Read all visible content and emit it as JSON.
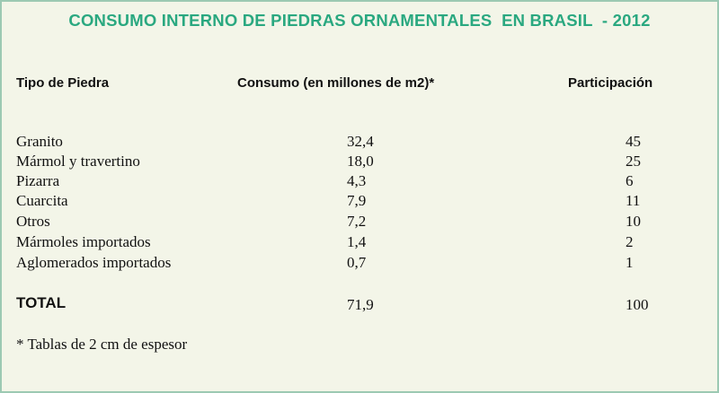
{
  "title": "CONSUMO INTERNO DE PIEDRAS ORNAMENTALES  EN BRASIL  - 2012",
  "headers": {
    "tipo": "Tipo de Piedra",
    "consumo": "Consumo (en millones de m2)*",
    "participacion": "Participación"
  },
  "rows": [
    {
      "tipo": "Granito",
      "consumo": "32,4",
      "participacion": "45"
    },
    {
      "tipo": "Mármol y travertino",
      "consumo": "18,0",
      "participacion": "25"
    },
    {
      "tipo": "Pizarra",
      "consumo": "4,3",
      "participacion": "6"
    },
    {
      "tipo": "Cuarcita",
      "consumo": "7,9",
      "participacion": "11"
    },
    {
      "tipo": "Otros",
      "consumo": "7,2",
      "participacion": "10"
    },
    {
      "tipo": "Mármoles importados",
      "consumo": "1,4",
      "participacion": "2"
    },
    {
      "tipo": "Aglomerados importados",
      "consumo": "0,7",
      "participacion": "1"
    }
  ],
  "total": {
    "label": "TOTAL",
    "consumo": "71,9",
    "participacion": "100"
  },
  "footnote": "* Tablas de 2 cm de espesor",
  "colors": {
    "title": "#2aa880",
    "background": "#f3f5e8",
    "border": "#9cc9b3"
  }
}
